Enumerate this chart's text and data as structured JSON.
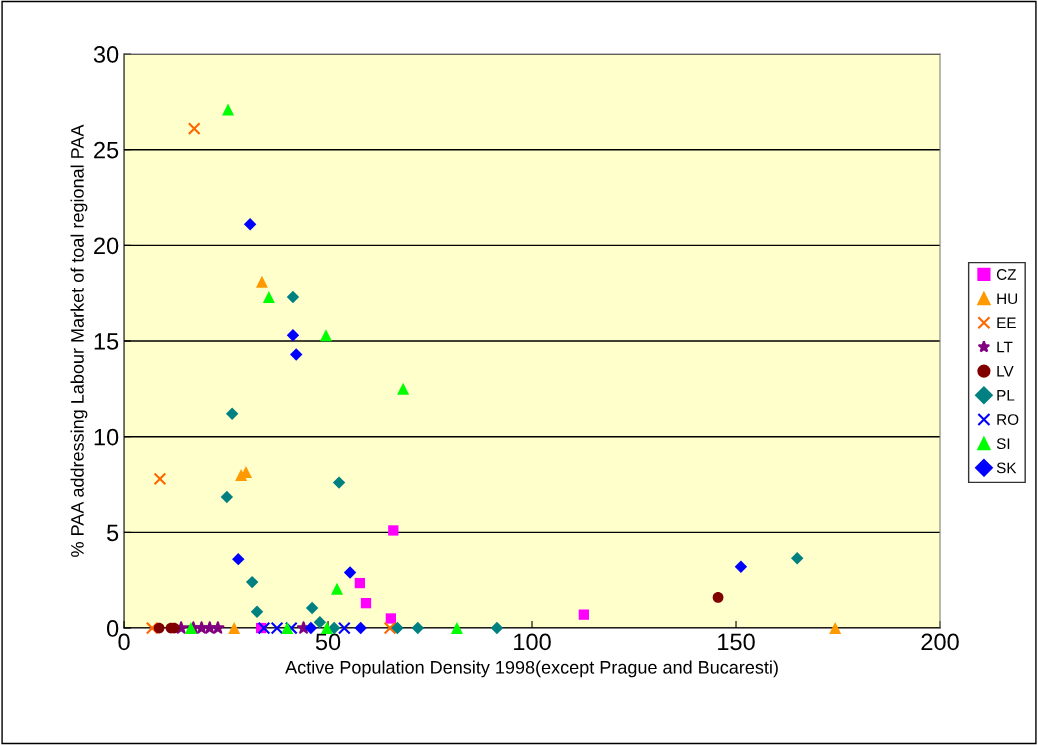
{
  "chart_data": {
    "type": "scatter",
    "xlabel": "Active Population Density 1998(except Prague and Bucaresti)",
    "ylabel": "% PAA addressing Labour Market of toal regional PAA",
    "xlim": [
      0,
      200
    ],
    "ylim": [
      0,
      30
    ],
    "xticks": [
      0,
      50,
      100,
      150,
      200
    ],
    "yticks": [
      0,
      5,
      10,
      15,
      20,
      25,
      30
    ],
    "grid": "y",
    "legend": "right",
    "series": [
      {
        "name": "CZ",
        "color": "#ff00ff",
        "marker": "square",
        "x": [
          66,
          57.8,
          59.3,
          65.4,
          112.7,
          33.6
        ],
        "values": [
          5.1,
          2.35,
          1.3,
          0.5,
          0.7,
          0
        ]
      },
      {
        "name": "HU",
        "color": "#ff9900",
        "marker": "triangle",
        "x": [
          33.8,
          28.7,
          29.9,
          27,
          174.3
        ],
        "values": [
          18.1,
          8,
          8.15,
          0,
          0
        ]
      },
      {
        "name": "EE",
        "color": "#ff6600",
        "marker": "cross",
        "x": [
          17.2,
          8.8,
          6.9,
          65.2
        ],
        "values": [
          26.1,
          7.8,
          0,
          0
        ]
      },
      {
        "name": "LT",
        "color": "#800080",
        "marker": "star",
        "x": [
          14,
          17,
          19,
          21,
          23,
          44
        ],
        "values": [
          0,
          0,
          0,
          0,
          0,
          0
        ]
      },
      {
        "name": "LV",
        "color": "#800000",
        "marker": "circle",
        "x": [
          8.6,
          11.5,
          12.3,
          145.6
        ],
        "values": [
          0,
          0,
          0,
          1.6
        ]
      },
      {
        "name": "PL",
        "color": "#008080",
        "marker": "diamond",
        "x": [
          41.4,
          26.5,
          52.7,
          25.2,
          31.4,
          32.6,
          46.1,
          48,
          51.5,
          67,
          72,
          91.4,
          165
        ],
        "values": [
          17.3,
          11.2,
          7.6,
          6.85,
          2.4,
          0.85,
          1.05,
          0.3,
          0,
          0,
          0,
          0,
          3.65
        ]
      },
      {
        "name": "RO",
        "color": "#0000ff",
        "marker": "cross",
        "x": [
          34.3,
          37.5,
          41,
          54
        ],
        "values": [
          0,
          0,
          0,
          0
        ]
      },
      {
        "name": "SI",
        "color": "#00ff00",
        "marker": "triangle",
        "x": [
          25.5,
          35.5,
          49.5,
          68.4,
          52.2,
          16.4,
          40,
          49.7,
          81.6
        ],
        "values": [
          27.1,
          17.3,
          15.3,
          12.5,
          2.05,
          0,
          0,
          0,
          0
        ]
      },
      {
        "name": "SK",
        "color": "#0000ff",
        "marker": "diamond",
        "x": [
          30.9,
          41.4,
          42.2,
          28,
          55.4,
          45.8,
          58,
          151.2
        ],
        "values": [
          21.1,
          15.3,
          14.3,
          3.6,
          2.9,
          0,
          0,
          3.2
        ]
      }
    ]
  }
}
